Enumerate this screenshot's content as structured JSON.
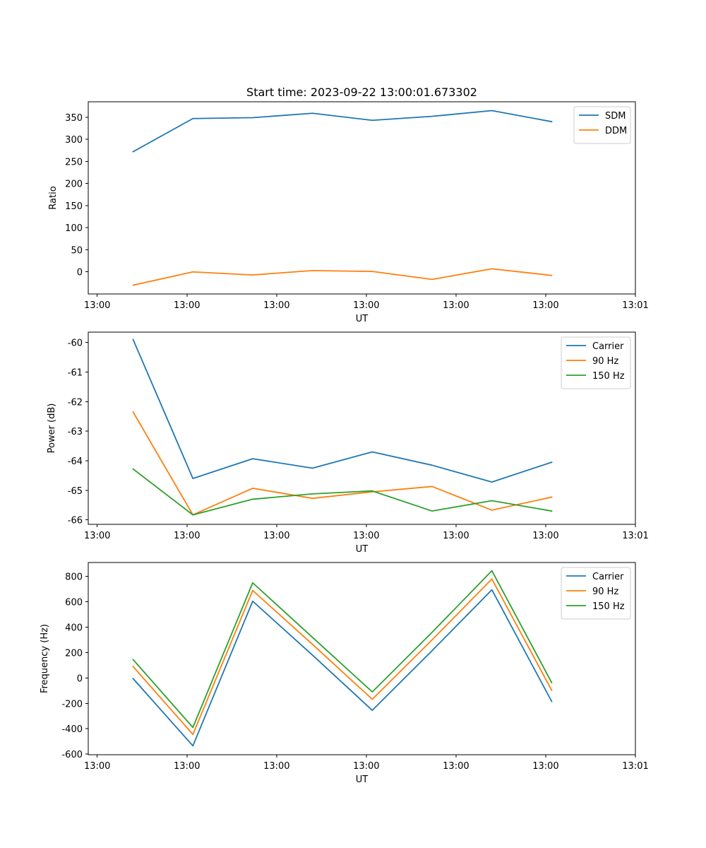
{
  "figure": {
    "title": "Start time: 2023-09-22 13:00:01.673302"
  },
  "colors": {
    "blue": "#1f77b4",
    "orange": "#ff7f0e",
    "green": "#2ca02c"
  },
  "chart_data": [
    {
      "type": "line",
      "title": "Start time: 2023-09-22 13:00:01.673302",
      "xlabel": "UT",
      "ylabel": "Ratio",
      "x_tick_labels": [
        "13:00",
        "13:00",
        "13:00",
        "13:00",
        "13:00",
        "13:00",
        "13:01"
      ],
      "y_ticks": [
        0,
        50,
        100,
        150,
        200,
        250,
        300,
        350
      ],
      "ylim": [
        -50,
        385
      ],
      "x": [
        1,
        2,
        3,
        4,
        5,
        6,
        7,
        8
      ],
      "xlim": [
        0.25,
        9.4
      ],
      "legend_position": "top-right",
      "series": [
        {
          "name": "SDM",
          "color": "#1f77b4",
          "values": [
            272,
            347,
            349,
            359,
            343,
            352,
            365,
            340
          ]
        },
        {
          "name": "DDM",
          "color": "#ff7f0e",
          "values": [
            -30,
            0,
            -7,
            3,
            1,
            -17,
            7,
            -8
          ]
        }
      ]
    },
    {
      "type": "line",
      "title": "",
      "xlabel": "UT",
      "ylabel": "Power (dB)",
      "x_tick_labels": [
        "13:00",
        "13:00",
        "13:00",
        "13:00",
        "13:00",
        "13:00",
        "13:01"
      ],
      "y_ticks": [
        -66,
        -65,
        -64,
        -63,
        -62,
        -61,
        -60
      ],
      "ylim": [
        -66.15,
        -59.65
      ],
      "x": [
        1,
        2,
        3,
        4,
        5,
        6,
        7,
        8
      ],
      "xlim": [
        0.25,
        9.4
      ],
      "legend_position": "top-right",
      "series": [
        {
          "name": "Carrier",
          "color": "#1f77b4",
          "values": [
            -59.9,
            -64.6,
            -63.93,
            -64.25,
            -63.7,
            -64.15,
            -64.72,
            -64.05
          ]
        },
        {
          "name": "90 Hz",
          "color": "#ff7f0e",
          "values": [
            -62.35,
            -65.83,
            -64.93,
            -65.27,
            -65.05,
            -64.87,
            -65.67,
            -65.23
          ]
        },
        {
          "name": "150 Hz",
          "color": "#2ca02c",
          "values": [
            -64.28,
            -65.83,
            -65.3,
            -65.12,
            -65.02,
            -65.7,
            -65.35,
            -65.7
          ]
        }
      ]
    },
    {
      "type": "line",
      "title": "",
      "xlabel": "UT",
      "ylabel": "Frequency (Hz)",
      "x_tick_labels": [
        "13:00",
        "13:00",
        "13:00",
        "13:00",
        "13:00",
        "13:00",
        "13:01"
      ],
      "y_ticks": [
        -600,
        -400,
        -200,
        0,
        200,
        400,
        600,
        800
      ],
      "ylim": [
        -605,
        910
      ],
      "x": [
        1,
        2,
        3,
        4,
        5,
        6,
        7,
        8
      ],
      "xlim": [
        0.25,
        9.4
      ],
      "legend_position": "top-right",
      "series": [
        {
          "name": "Carrier",
          "color": "#1f77b4",
          "values": [
            -5,
            -535,
            605,
            180,
            -255,
            215,
            695,
            -185
          ]
        },
        {
          "name": "90 Hz",
          "color": "#ff7f0e",
          "values": [
            90,
            -445,
            690,
            265,
            -168,
            300,
            780,
            -97
          ]
        },
        {
          "name": "150 Hz",
          "color": "#2ca02c",
          "values": [
            145,
            -390,
            750,
            320,
            -110,
            360,
            845,
            -37
          ]
        }
      ]
    }
  ]
}
